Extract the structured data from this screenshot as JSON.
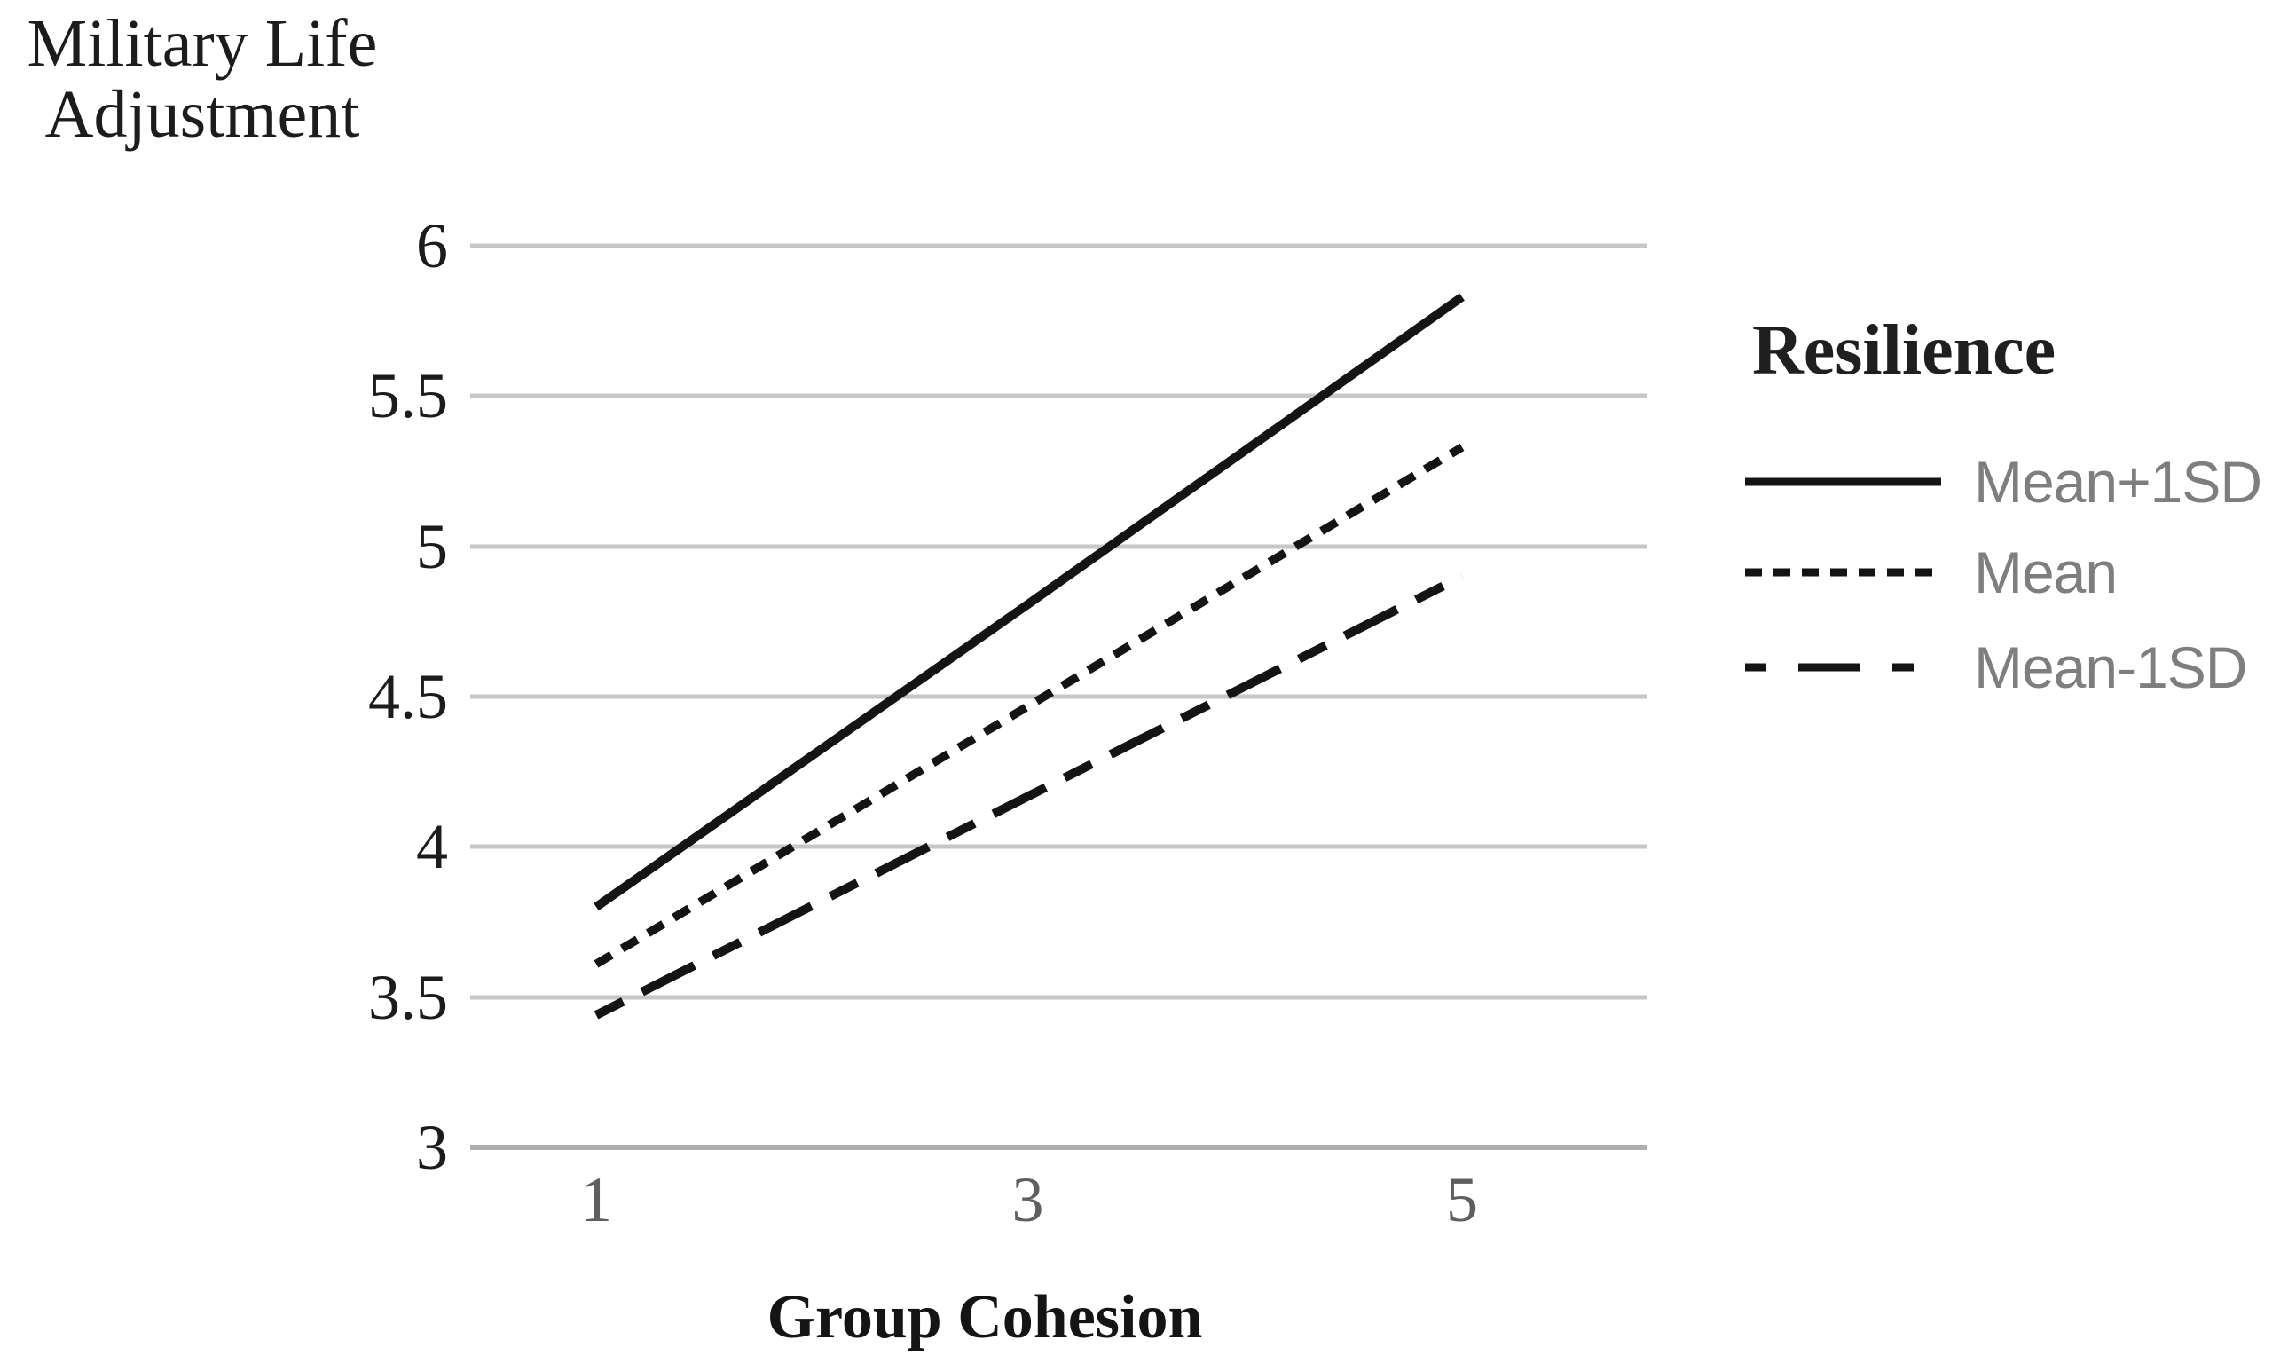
{
  "chart_data": {
    "type": "line",
    "title": "",
    "xlabel": "Group Cohesion",
    "ylabel": "Military Life Adjustment",
    "ylabel_lines": [
      "Military Life",
      "Adjustment"
    ],
    "legend_title": "Resilience",
    "legend_position": "right",
    "grid": "horizontal-only",
    "xlim": [
      1,
      5
    ],
    "ylim": [
      3,
      6
    ],
    "x_ticks": [
      1,
      3,
      5
    ],
    "x_tick_labels": [
      "1",
      "3",
      "5"
    ],
    "y_ticks": [
      6,
      5.5,
      5,
      4.5,
      4,
      3.5,
      3
    ],
    "y_tick_labels": [
      "6",
      "5.5",
      "5",
      "4.5",
      "4",
      "3.5",
      "3"
    ],
    "series": [
      {
        "name": "Mean+1SD",
        "style": "solid",
        "x": [
          1,
          3,
          5
        ],
        "values": [
          3.8,
          4.81,
          5.83
        ]
      },
      {
        "name": "Mean",
        "style": "dashed",
        "x": [
          1,
          3,
          5
        ],
        "values": [
          3.61,
          4.47,
          5.33
        ]
      },
      {
        "name": "Mean-1SD",
        "style": "long-dash",
        "x": [
          1,
          3,
          5
        ],
        "values": [
          3.44,
          4.17,
          4.9
        ]
      }
    ],
    "colors": {
      "line": "#141414",
      "gridline": "#c7c7c7",
      "axis_line": "#aeaeae",
      "y_tick_text": "#1c1c1c",
      "x_tick_text": "#5f5f5f",
      "legend_text": "#7e7e7e",
      "title_text": "#1c1c1c",
      "background": "#ffffff"
    }
  }
}
